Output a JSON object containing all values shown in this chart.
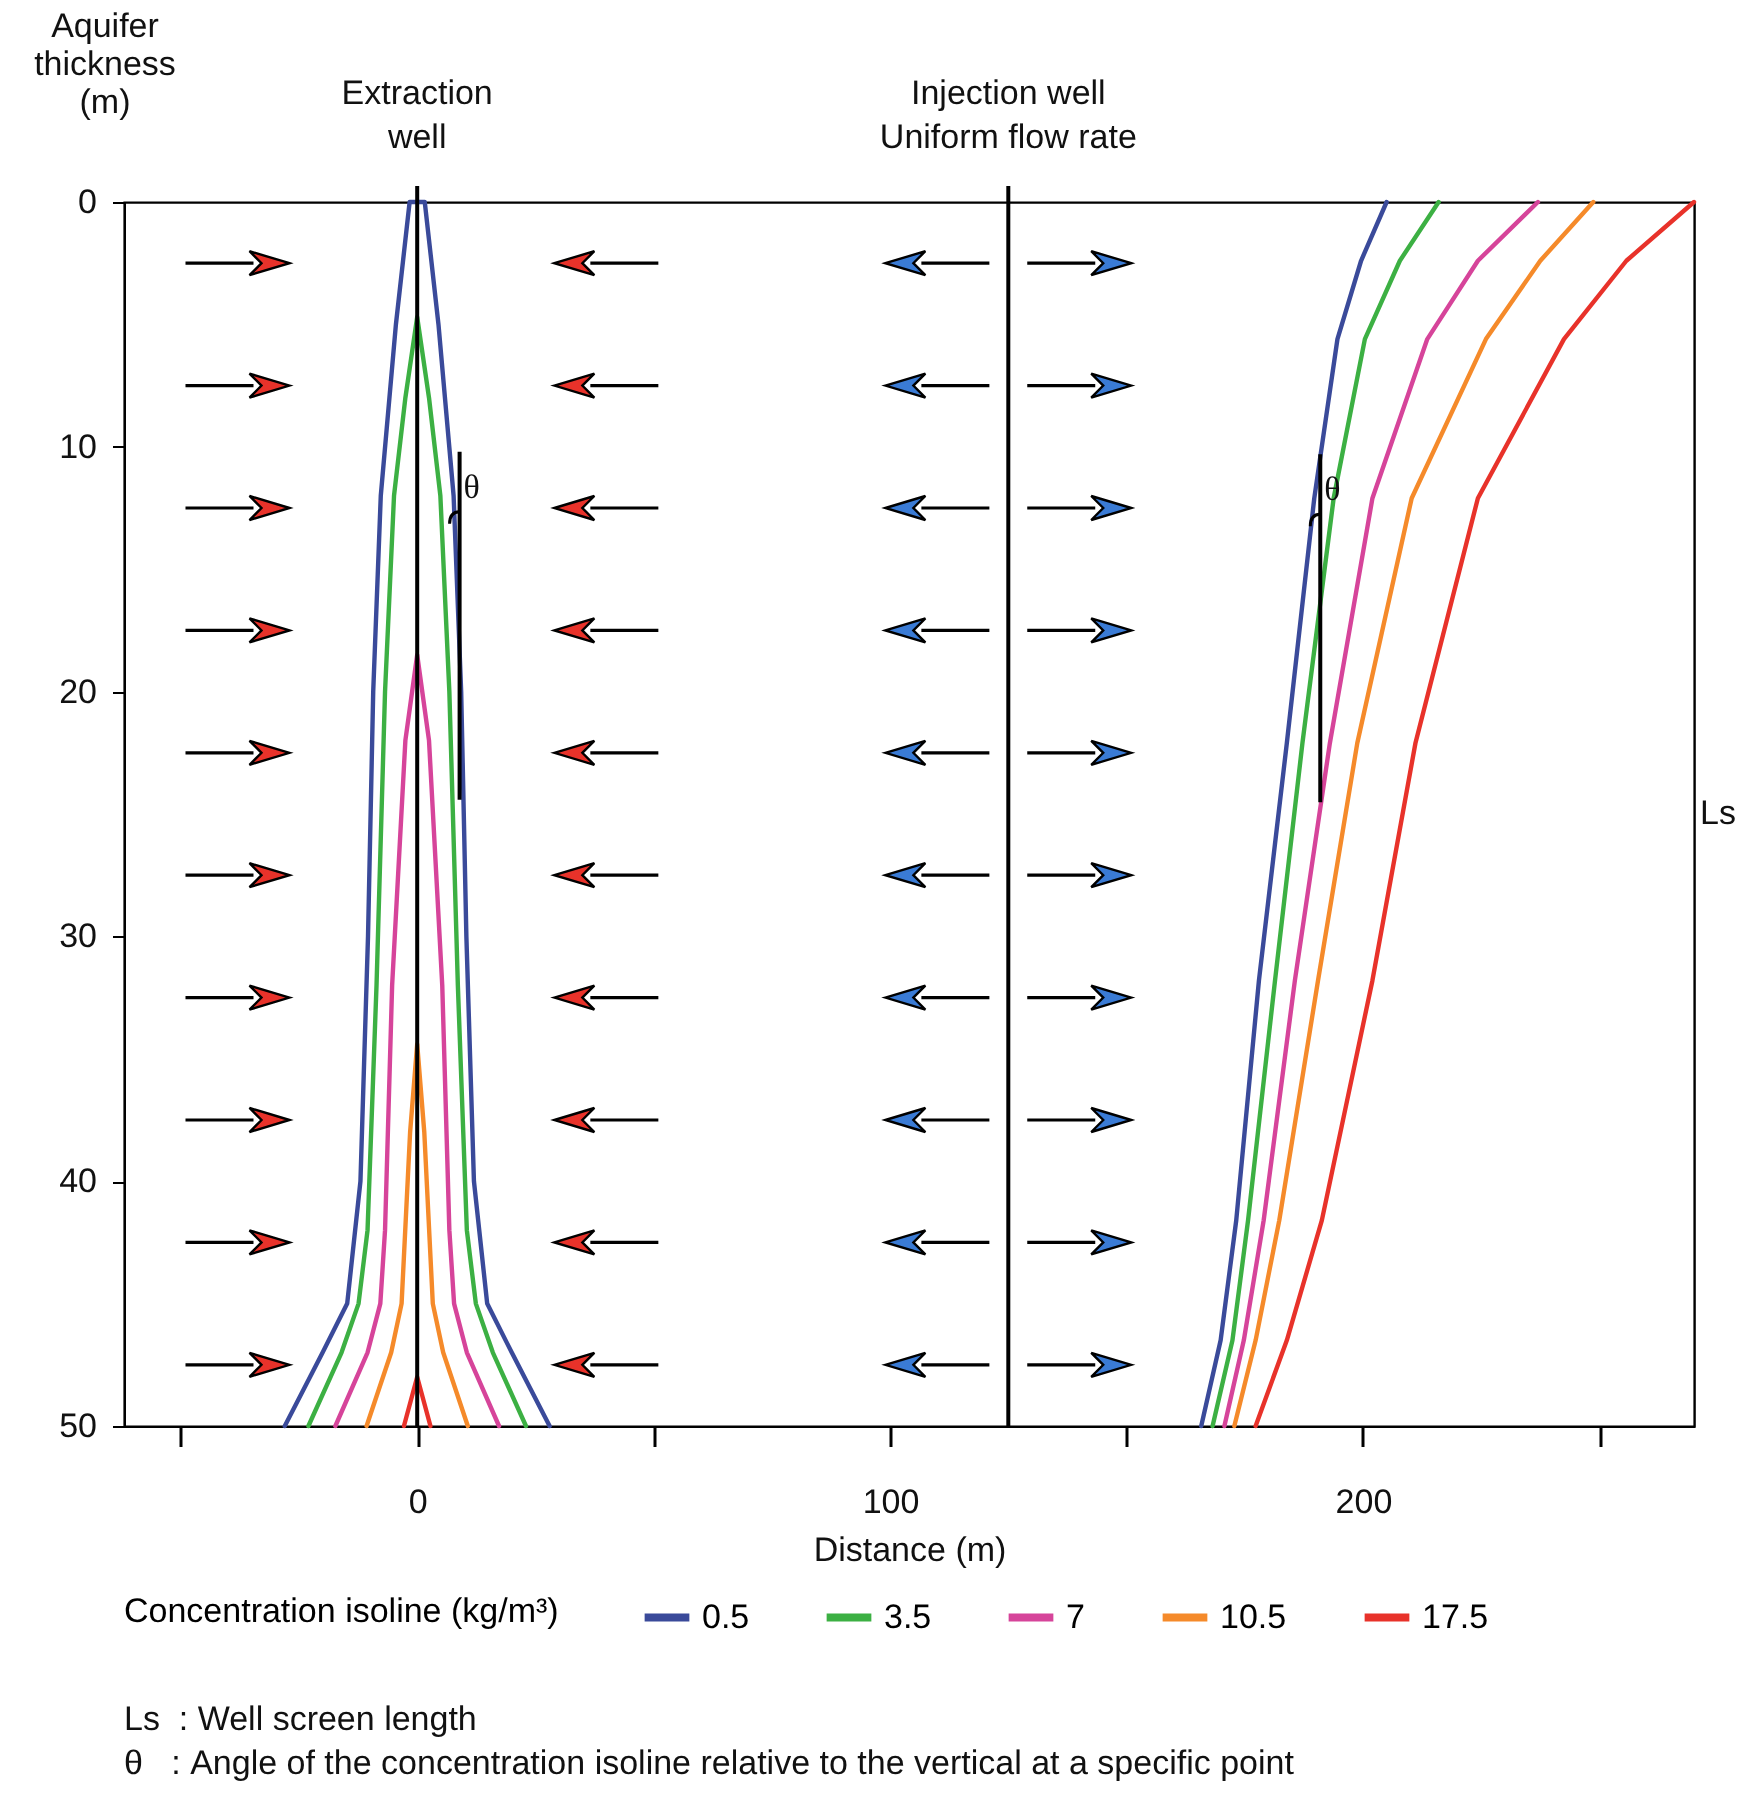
{
  "chart_data": {
    "type": "line",
    "xlabel": "Distance (m)",
    "ylabel": "Aquifer thickness (m)",
    "legend_title": "Concentration isoline (kg/m³)",
    "legend": "bottom",
    "grid": false,
    "xlim": [
      -62,
      270
    ],
    "ylim": [
      50,
      0
    ],
    "xticks": [
      {
        "value": -50,
        "label": null
      },
      0,
      {
        "value": 50,
        "label": null
      },
      100,
      {
        "value": 150,
        "label": null
      },
      200,
      {
        "value": 250,
        "label": null
      }
    ],
    "yticks": [
      0,
      10,
      20,
      30,
      40,
      50
    ],
    "series": [
      {
        "name": "0.5",
        "color": "#3a4a9a",
        "x": [
          -28,
          -20,
          -14.8,
          -12,
          -10.4,
          -9.3,
          -7.7,
          -4.5,
          -1.6,
          1.6,
          4.5,
          7.7,
          9.3,
          10.4,
          12,
          14.8,
          20,
          28
        ],
        "values": [
          50,
          47,
          45,
          40,
          30,
          20,
          12,
          5,
          0,
          0,
          5,
          12,
          20,
          30,
          40,
          45,
          47,
          50
        ]
      },
      {
        "name": "3.5",
        "color": "#3cb043",
        "x": [
          -23,
          -16,
          -12.4,
          -10.5,
          -8.6,
          -6.8,
          -4.9,
          -2.5,
          0,
          2.5,
          4.9,
          6.8,
          8.6,
          10.5,
          12.4,
          16,
          23
        ],
        "values": [
          50,
          47,
          45,
          42,
          32,
          20,
          12,
          8,
          4.7,
          8,
          12,
          20,
          32,
          42,
          45,
          47,
          50
        ]
      },
      {
        "name": "7",
        "color": "#d6449a",
        "x": [
          -17.3,
          -10.5,
          -7.8,
          -6.8,
          -5.3,
          -2.5,
          0,
          2.5,
          5.3,
          6.8,
          7.8,
          10.5,
          17.3
        ],
        "values": [
          50,
          47,
          45,
          42,
          32,
          22,
          18.5,
          22,
          32,
          42,
          45,
          47,
          50
        ]
      },
      {
        "name": "10.5",
        "color": "#f58a2a",
        "x": [
          -10.7,
          -5.5,
          -3.3,
          -1.5,
          0,
          1.5,
          3.3,
          5.5,
          10.7
        ],
        "values": [
          50,
          47,
          45,
          38,
          34.4,
          38,
          45,
          47,
          50
        ]
      },
      {
        "name": "17.5",
        "color": "#e8322a",
        "x": [
          -2.8,
          0,
          2.8
        ],
        "values": [
          50,
          48,
          50
        ]
      },
      {
        "color": "#3a4a9a",
        "x": [
          205,
          199.6,
          194.6,
          189.7,
          183.9,
          178,
          173.2,
          169.9,
          165.8
        ],
        "values": [
          0,
          2.4,
          5.6,
          12.1,
          22.1,
          31.8,
          41.6,
          46.5,
          50
        ]
      },
      {
        "color": "#3cb043",
        "x": [
          216,
          207.8,
          200.4,
          193.8,
          187.2,
          181.4,
          175.7,
          172.4,
          168.2
        ],
        "values": [
          0,
          2.4,
          5.6,
          12.1,
          22.1,
          31.8,
          41.6,
          46.5,
          50
        ]
      },
      {
        "color": "#d6449a",
        "x": [
          237,
          224.3,
          213.6,
          202,
          193,
          185.6,
          179,
          174.8,
          170.7
        ],
        "values": [
          0,
          2.4,
          5.6,
          12.1,
          22.1,
          31.8,
          41.6,
          46.5,
          50
        ]
      },
      {
        "color": "#f58a2a",
        "x": [
          248.7,
          237.5,
          226,
          210.3,
          198.8,
          190.5,
          182.3,
          177.3,
          172.8
        ],
        "values": [
          0,
          2.4,
          5.6,
          12.1,
          22.1,
          31.8,
          41.6,
          46.5,
          50
        ]
      },
      {
        "color": "#e8322a",
        "x": [
          270,
          255.7,
          242.5,
          224.3,
          211.1,
          202,
          191.3,
          183.9,
          177.3
        ],
        "values": [
          0,
          2.4,
          5.6,
          12.1,
          22.1,
          31.8,
          41.6,
          46.5,
          50
        ]
      }
    ],
    "ref_lines": [
      {
        "axis": "x",
        "value": 0,
        "label": "Extraction\nwell"
      },
      {
        "axis": "x",
        "value": 125,
        "label": "Injection well\nUniform flow rate"
      }
    ],
    "annotations": [
      {
        "text": "θ",
        "x": 7.7,
        "y": 12
      },
      {
        "text": "θ",
        "x": 189.7,
        "y": 12.1
      },
      "Ls",
      "Ls  : Well screen length",
      "θ   : Angle of the concentration isoline relative to the vertical at a specific point"
    ]
  }
}
